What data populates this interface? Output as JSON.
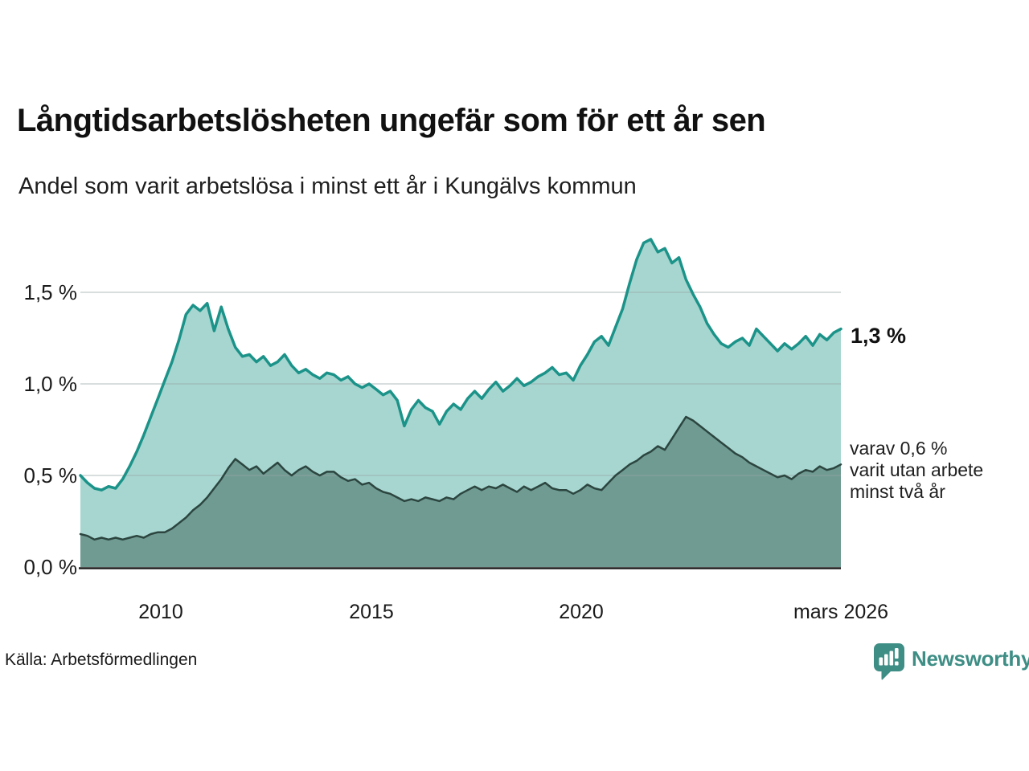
{
  "header": {
    "title": "Långtidsarbetslösheten ungefär som för ett år sen",
    "subtitle": "Andel som varit arbetslösa i minst ett år i Kungälvs kommun"
  },
  "annotations": {
    "latest_total": "1,3 %",
    "varav_line1": "varav 0,6 %",
    "varav_line2": "varit utan arbete",
    "varav_line3": "minst två år"
  },
  "footer": {
    "source": "Källa: Arbetsförmedlingen",
    "brand_name": "Newsworthy",
    "brand_icon": "bar-chart-speech-bubble-icon"
  },
  "colors": {
    "accent_teal": "#1b9389",
    "fill_light": "#a7d6d0",
    "fill_dark": "#6f9b93",
    "line_dark": "#2c453f",
    "grid": "#9aa6a6",
    "axis": "#1c1c1c",
    "brand": "#3e8e86"
  },
  "chart_data": {
    "type": "area",
    "title": "Långtidsarbetslösheten ungefär som för ett år sen",
    "subtitle": "Andel som varit arbetslösa i minst ett år i Kungälvs kommun",
    "xlabel": "",
    "ylabel": "",
    "grid": "horizontal",
    "legend_position": "none",
    "x_domain": [
      2008.08,
      2026.17
    ],
    "ylim": [
      0,
      1.85
    ],
    "y_ticks": [
      {
        "value": 0,
        "label": "0,0 %"
      },
      {
        "value": 0.5,
        "label": "0,5 %"
      },
      {
        "value": 1.0,
        "label": "1,0 %"
      },
      {
        "value": 1.5,
        "label": "1,5 %"
      }
    ],
    "x_ticks": [
      {
        "year": 2010,
        "label": "2010"
      },
      {
        "year": 2015,
        "label": "2015"
      },
      {
        "year": 2020,
        "label": "2020"
      },
      {
        "year": 2026.17,
        "label": "mars 2026"
      }
    ],
    "series": [
      {
        "name": "Andel arbetslösa minst ett år",
        "latest_value_pct": 1.3,
        "line_color": "#1b9389",
        "fill_color": "#a7d6d0",
        "values": [
          0.5,
          0.46,
          0.43,
          0.42,
          0.44,
          0.43,
          0.48,
          0.55,
          0.63,
          0.72,
          0.82,
          0.92,
          1.02,
          1.12,
          1.24,
          1.38,
          1.43,
          1.4,
          1.44,
          1.29,
          1.42,
          1.3,
          1.2,
          1.15,
          1.16,
          1.12,
          1.15,
          1.1,
          1.12,
          1.16,
          1.1,
          1.06,
          1.08,
          1.05,
          1.03,
          1.06,
          1.05,
          1.02,
          1.04,
          1.0,
          0.98,
          1.0,
          0.97,
          0.94,
          0.96,
          0.91,
          0.77,
          0.86,
          0.91,
          0.87,
          0.85,
          0.78,
          0.85,
          0.89,
          0.86,
          0.92,
          0.96,
          0.92,
          0.97,
          1.01,
          0.96,
          0.99,
          1.03,
          0.99,
          1.01,
          1.04,
          1.06,
          1.09,
          1.05,
          1.06,
          1.02,
          1.1,
          1.16,
          1.23,
          1.26,
          1.21,
          1.31,
          1.41,
          1.55,
          1.68,
          1.77,
          1.79,
          1.72,
          1.74,
          1.66,
          1.69,
          1.57,
          1.49,
          1.42,
          1.33,
          1.27,
          1.22,
          1.2,
          1.23,
          1.25,
          1.21,
          1.3,
          1.26,
          1.22,
          1.18,
          1.22,
          1.19,
          1.22,
          1.26,
          1.21,
          1.27,
          1.24,
          1.28,
          1.3
        ]
      },
      {
        "name": "varav utan arbete minst två år",
        "latest_value_pct": 0.6,
        "line_color": "#2c453f",
        "fill_color": "#6f9b93",
        "values": [
          0.18,
          0.17,
          0.15,
          0.16,
          0.15,
          0.16,
          0.15,
          0.16,
          0.17,
          0.16,
          0.18,
          0.19,
          0.19,
          0.21,
          0.24,
          0.27,
          0.31,
          0.34,
          0.38,
          0.43,
          0.48,
          0.54,
          0.59,
          0.56,
          0.53,
          0.55,
          0.51,
          0.54,
          0.57,
          0.53,
          0.5,
          0.53,
          0.55,
          0.52,
          0.5,
          0.52,
          0.52,
          0.49,
          0.47,
          0.48,
          0.45,
          0.46,
          0.43,
          0.41,
          0.4,
          0.38,
          0.36,
          0.37,
          0.36,
          0.38,
          0.37,
          0.36,
          0.38,
          0.37,
          0.4,
          0.42,
          0.44,
          0.42,
          0.44,
          0.43,
          0.45,
          0.43,
          0.41,
          0.44,
          0.42,
          0.44,
          0.46,
          0.43,
          0.42,
          0.42,
          0.4,
          0.42,
          0.45,
          0.43,
          0.42,
          0.46,
          0.5,
          0.53,
          0.56,
          0.58,
          0.61,
          0.63,
          0.66,
          0.64,
          0.7,
          0.76,
          0.82,
          0.8,
          0.77,
          0.74,
          0.71,
          0.68,
          0.65,
          0.62,
          0.6,
          0.57,
          0.55,
          0.53,
          0.51,
          0.49,
          0.5,
          0.48,
          0.51,
          0.53,
          0.52,
          0.55,
          0.53,
          0.54,
          0.56
        ]
      }
    ]
  }
}
